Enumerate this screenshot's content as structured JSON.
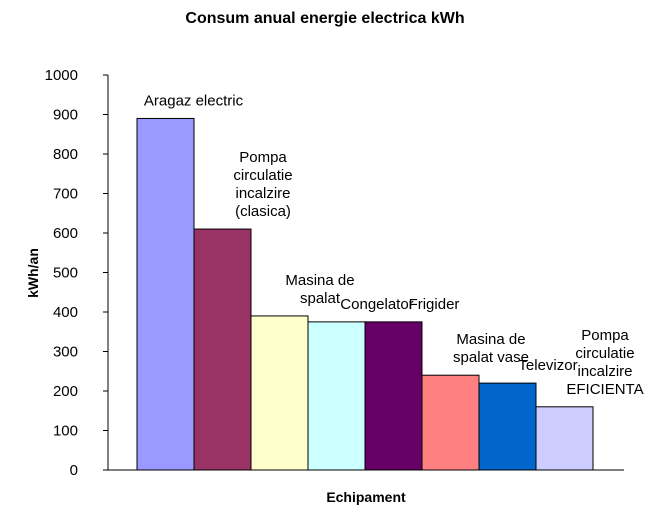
{
  "chart_data": {
    "type": "bar",
    "title": "Consum anual energie electrica kWh",
    "xlabel": "Echipament",
    "ylabel": "kWh/an",
    "ylim": [
      0,
      1000
    ],
    "yticks": [
      0,
      100,
      200,
      300,
      400,
      500,
      600,
      700,
      800,
      900,
      1000
    ],
    "grid": false,
    "legend": "none",
    "categories": [
      "Aragaz electric",
      "Pompa circulatie incalzire (clasica)",
      "Masina de spalat",
      "Congelator",
      "Frigider",
      "Masina de spalat vase",
      "Televizor",
      "Pompa circulatie incalzire EFICIENTA"
    ],
    "label_lines": [
      [
        "Aragaz electric"
      ],
      [
        "Pompa",
        "circulatie",
        "incalzire",
        "(clasica)"
      ],
      [
        "Masina de",
        "spalat"
      ],
      [
        "Congelator"
      ],
      [
        "Frigider"
      ],
      [
        "Masina de",
        "spalat vase"
      ],
      [
        "Televizor"
      ],
      [
        "Pompa",
        "circulatie",
        "incalzire",
        "EFICIENTA"
      ]
    ],
    "values": [
      890,
      610,
      390,
      375,
      375,
      240,
      220,
      160
    ],
    "colors": [
      "#9999ff",
      "#993366",
      "#ffffcc",
      "#ccffff",
      "#660066",
      "#ff8080",
      "#0066cc",
      "#ccccff"
    ]
  }
}
